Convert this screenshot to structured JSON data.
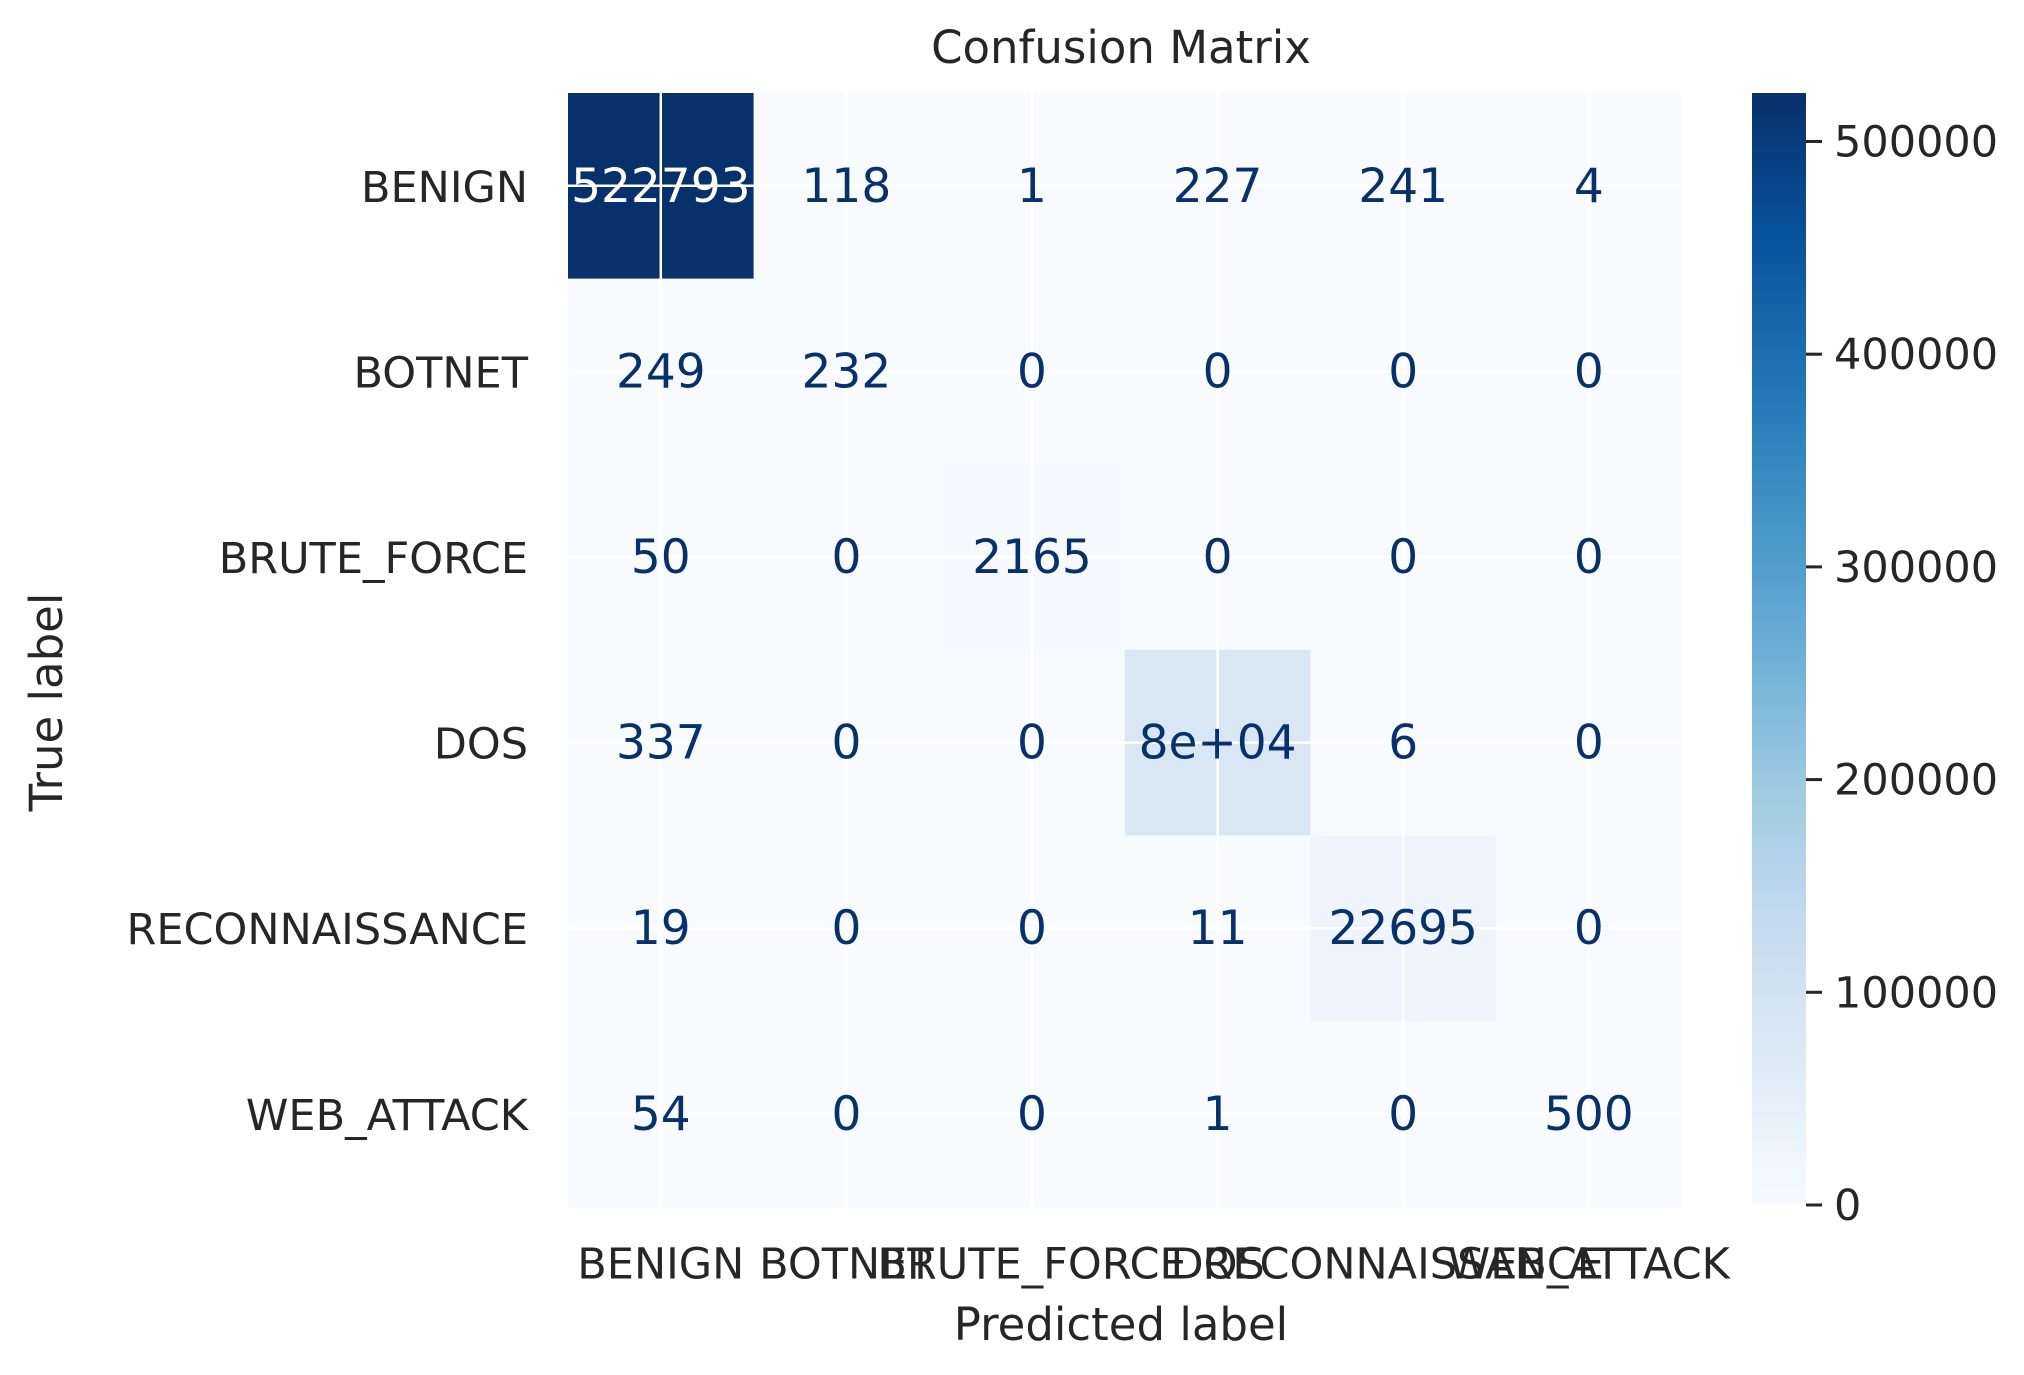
{
  "chart_data": {
    "type": "heatmap",
    "title": "Confusion Matrix",
    "xlabel": "Predicted label",
    "ylabel": "True label",
    "x_categories": [
      "BENIGN",
      "BOTNET",
      "BRUTE_FORCE",
      "DOS",
      "RECONNAISSANCE",
      "WEB_ATTACK"
    ],
    "y_categories": [
      "BENIGN",
      "BOTNET",
      "BRUTE_FORCE",
      "DOS",
      "RECONNAISSANCE",
      "WEB_ATTACK"
    ],
    "values": [
      [
        522793,
        118,
        1,
        227,
        241,
        4
      ],
      [
        249,
        232,
        0,
        0,
        0,
        0
      ],
      [
        50,
        0,
        2165,
        0,
        0,
        0
      ],
      [
        337,
        0,
        0,
        80000,
        6,
        0
      ],
      [
        19,
        0,
        0,
        11,
        22695,
        0
      ],
      [
        54,
        0,
        0,
        1,
        0,
        500
      ]
    ],
    "value_labels": [
      [
        "522793",
        "118",
        "1",
        "227",
        "241",
        "4"
      ],
      [
        "249",
        "232",
        "0",
        "0",
        "0",
        "0"
      ],
      [
        "50",
        "0",
        "2165",
        "0",
        "0",
        "0"
      ],
      [
        "337",
        "0",
        "0",
        "8e+04",
        "6",
        "0"
      ],
      [
        "19",
        "0",
        "0",
        "11",
        "22695",
        "0"
      ],
      [
        "54",
        "0",
        "0",
        "1",
        "0",
        "500"
      ]
    ],
    "colormap": "Blues",
    "colorbar": {
      "range": [
        0,
        522793
      ],
      "ticks": [
        0,
        100000,
        200000,
        300000,
        400000,
        500000
      ],
      "tick_labels": [
        "0",
        "100000",
        "200000",
        "300000",
        "400000",
        "500000"
      ]
    },
    "grid": true
  },
  "colors": {
    "low": "#f7fbff",
    "high": "#08306b",
    "text_dark_cell": "#ffffff",
    "text_light_cell": "#08306b",
    "grid": "#ffffff"
  }
}
